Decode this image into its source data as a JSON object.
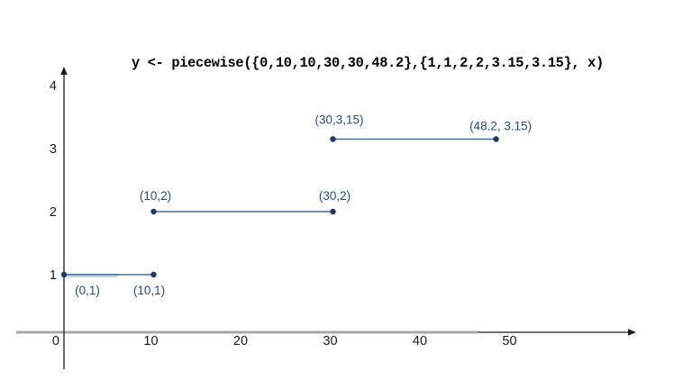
{
  "chart_data": {
    "type": "line",
    "subtype": "piecewise-step-segments",
    "title": "y <- piecewise({0,10,10,30,30,48.2},{1,1,2,2,3.15,3.15}, x)",
    "xlabel": "",
    "ylabel": "",
    "xlim": [
      0,
      63
    ],
    "ylim": [
      0,
      4.3
    ],
    "grid": false,
    "legend": false,
    "x_ticks": [
      10,
      20,
      30,
      40,
      50
    ],
    "y_ticks": [
      1,
      2,
      3,
      4
    ],
    "origin_label": "0",
    "segments": [
      {
        "points": [
          [
            0,
            1
          ],
          [
            10,
            1
          ]
        ],
        "labels": [
          {
            "text": "(0,1)",
            "dx": 26,
            "dy": 22
          },
          {
            "text": "(10,1)",
            "dx": -5,
            "dy": 22
          }
        ],
        "highlight": [
          0,
          6
        ]
      },
      {
        "points": [
          [
            10,
            2
          ],
          [
            30,
            2
          ]
        ],
        "labels": [
          {
            "text": "(10,2)",
            "dx": 2,
            "dy": -13
          },
          {
            "text": "(30,2)",
            "dx": 2,
            "dy": -13
          }
        ]
      },
      {
        "points": [
          [
            30,
            3.15
          ],
          [
            48.2,
            3.15
          ]
        ],
        "labels": [
          {
            "text": "(30,3,15)",
            "dx": 7,
            "dy": -17
          },
          {
            "text": "(48.2, 3.15)",
            "dx": 5,
            "dy": -10
          }
        ]
      }
    ],
    "colors": {
      "segment_line": "#41719C",
      "point_dot": "#1F3864",
      "point_label": "#1F4E79",
      "axis_line": "#1a1a1a",
      "axis_gray_overlay": "#A8A8A8",
      "segment_highlight": "#C8D6E8",
      "tick_label": "#1a1a1a",
      "title": "#000000"
    }
  }
}
